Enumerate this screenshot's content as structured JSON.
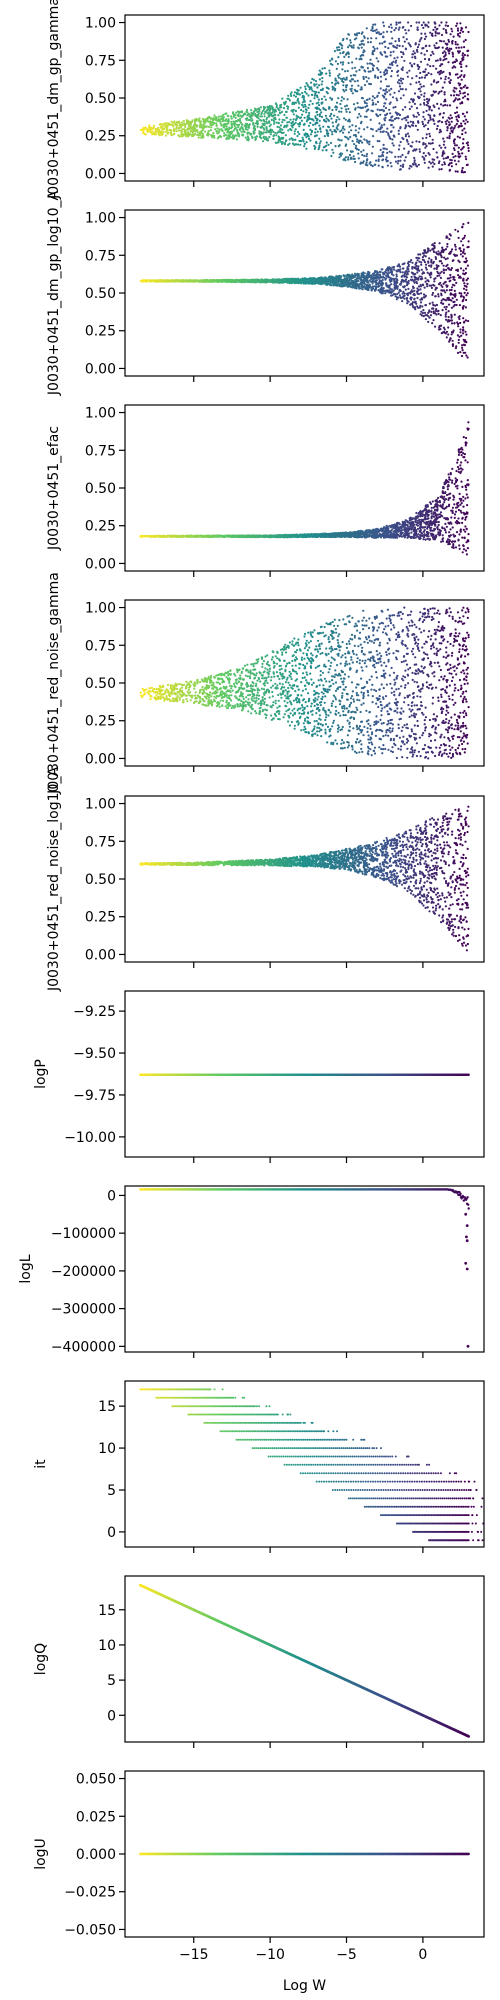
{
  "chart_data": {
    "type": "scatter",
    "xlabel": "Log W",
    "xlim": [
      -19.5,
      4
    ],
    "xticks": [
      -15,
      -10,
      -5,
      0
    ],
    "xtick_labels": [
      "−15",
      "−10",
      "−5",
      "0"
    ],
    "color_encoding": "viridis colormap; yellow at Log W ≈ -18.5, dark purple at Log W ≈ 3",
    "colormap_stops": [
      "#fde725",
      "#5ec962",
      "#21918c",
      "#3b528b",
      "#440154"
    ],
    "panels": [
      {
        "ylabel": "J0030+0451_dm_gp_gamma",
        "ylim": [
          -0.05,
          1.05
        ],
        "yticks": [
          0.0,
          0.25,
          0.5,
          0.75,
          1.0
        ],
        "ytick_labels": [
          "0.00",
          "0.25",
          "0.50",
          "0.75",
          "1.00"
        ],
        "envelope": {
          "x": [
            -18.5,
            -15,
            -10,
            -7,
            -5,
            -3,
            -1,
            1,
            3
          ],
          "center": [
            0.29,
            0.3,
            0.33,
            0.4,
            0.5,
            0.52,
            0.52,
            0.52,
            0.5
          ],
          "half_width": [
            0.03,
            0.06,
            0.12,
            0.25,
            0.42,
            0.48,
            0.5,
            0.5,
            0.5
          ]
        }
      },
      {
        "ylabel": "J0030+0451_dm_gp_log10_A",
        "ylim": [
          -0.05,
          1.05
        ],
        "yticks": [
          0.0,
          0.25,
          0.5,
          0.75,
          1.0
        ],
        "ytick_labels": [
          "0.00",
          "0.25",
          "0.50",
          "0.75",
          "1.00"
        ],
        "envelope": {
          "x": [
            -18.5,
            -15,
            -10,
            -7,
            -5,
            -3,
            -1,
            1,
            3
          ],
          "center": [
            0.58,
            0.58,
            0.58,
            0.58,
            0.58,
            0.58,
            0.57,
            0.55,
            0.5
          ],
          "half_width": [
            0.005,
            0.005,
            0.01,
            0.02,
            0.04,
            0.07,
            0.14,
            0.3,
            0.48
          ]
        }
      },
      {
        "ylabel": "J0030+0451_efac",
        "ylim": [
          -0.05,
          1.05
        ],
        "yticks": [
          0.0,
          0.25,
          0.5,
          0.75,
          1.0
        ],
        "ytick_labels": [
          "0.00",
          "0.25",
          "0.50",
          "0.75",
          "1.00"
        ],
        "envelope": {
          "x": [
            -18.5,
            -15,
            -10,
            -7,
            -5,
            -3,
            -1,
            1,
            2,
            3
          ],
          "center": [
            0.18,
            0.18,
            0.18,
            0.185,
            0.19,
            0.2,
            0.23,
            0.3,
            0.38,
            0.5
          ],
          "half_width": [
            0.003,
            0.004,
            0.006,
            0.01,
            0.015,
            0.03,
            0.06,
            0.15,
            0.28,
            0.45
          ]
        }
      },
      {
        "ylabel": "J0030+0451_red_noise_gamma",
        "ylim": [
          -0.05,
          1.05
        ],
        "yticks": [
          0.0,
          0.25,
          0.5,
          0.75,
          1.0
        ],
        "ytick_labels": [
          "0.00",
          "0.25",
          "0.50",
          "0.75",
          "1.00"
        ],
        "envelope": {
          "x": [
            -18.5,
            -15,
            -12,
            -10,
            -8,
            -6,
            -4,
            -2,
            0,
            3
          ],
          "center": [
            0.43,
            0.44,
            0.46,
            0.48,
            0.5,
            0.5,
            0.5,
            0.5,
            0.5,
            0.5
          ],
          "half_width": [
            0.03,
            0.08,
            0.14,
            0.22,
            0.32,
            0.42,
            0.48,
            0.5,
            0.5,
            0.5
          ]
        }
      },
      {
        "ylabel": "J0030+0451_red_noise_log10_A",
        "ylim": [
          -0.05,
          1.05
        ],
        "yticks": [
          0.0,
          0.25,
          0.5,
          0.75,
          1.0
        ],
        "ytick_labels": [
          "0.00",
          "0.25",
          "0.50",
          "0.75",
          "1.00"
        ],
        "envelope": {
          "x": [
            -18.5,
            -15,
            -10,
            -7,
            -5,
            -3,
            -1,
            1,
            3
          ],
          "center": [
            0.6,
            0.6,
            0.61,
            0.62,
            0.63,
            0.63,
            0.62,
            0.58,
            0.5
          ],
          "half_width": [
            0.005,
            0.008,
            0.02,
            0.04,
            0.07,
            0.12,
            0.2,
            0.35,
            0.49
          ]
        }
      },
      {
        "ylabel": "logP",
        "ylim": [
          -10.12,
          -9.13
        ],
        "yticks": [
          -10.0,
          -9.75,
          -9.5,
          -9.25
        ],
        "ytick_labels": [
          "−10.00",
          "−9.75",
          "−9.50",
          "−9.25"
        ],
        "constant_y": -9.63
      },
      {
        "ylabel": "logL",
        "ylim": [
          -415000,
          25000
        ],
        "yticks": [
          -400000,
          -300000,
          -200000,
          -100000,
          0
        ],
        "ytick_labels": [
          "−400000",
          "−300000",
          "−200000",
          "−100000",
          "0"
        ],
        "line_y": 16000,
        "tail_start_x": 1.5,
        "tail_min": -35000,
        "outliers": [
          {
            "x": 2.8,
            "y": -50000
          },
          {
            "x": 2.9,
            "y": -80000
          },
          {
            "x": 2.85,
            "y": -110000
          },
          {
            "x": 2.9,
            "y": -120000
          },
          {
            "x": 2.8,
            "y": -180000
          },
          {
            "x": 2.9,
            "y": -195000
          },
          {
            "x": 2.95,
            "y": -400000
          }
        ]
      },
      {
        "ylabel": "it",
        "ylim": [
          -1.8,
          18
        ],
        "yticks": [
          0,
          5,
          10,
          15
        ],
        "ytick_labels": [
          "0",
          "5",
          "10",
          "15"
        ],
        "rows": {
          "min": -1,
          "max": 17,
          "x_start_at_max": -18.5,
          "x_start_slope": 1.05,
          "width_base": 4.5,
          "width_growth": 0.45,
          "x_max": 3
        }
      },
      {
        "ylabel": "logQ",
        "ylim": [
          -3.8,
          19.8
        ],
        "yticks": [
          0,
          5,
          10,
          15
        ],
        "ytick_labels": [
          "0",
          "5",
          "10",
          "15"
        ],
        "line": {
          "x": [
            -18.5,
            3
          ],
          "y": [
            18.5,
            -3
          ]
        }
      },
      {
        "ylabel": "logU",
        "ylim": [
          -0.055,
          0.055
        ],
        "yticks": [
          -0.05,
          -0.025,
          0.0,
          0.025,
          0.05
        ],
        "ytick_labels": [
          "−0.050",
          "−0.025",
          "0.000",
          "0.025",
          "0.050"
        ],
        "constant_y": 0.0
      }
    ]
  }
}
